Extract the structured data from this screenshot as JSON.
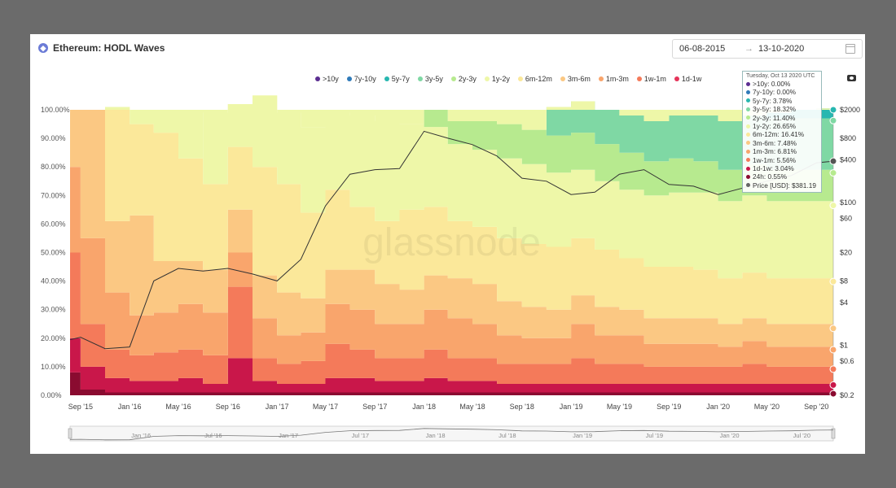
{
  "header": {
    "title": "Ethereum: HODL Waves",
    "coin_icon": "eth-icon",
    "date_from": "06-08-2015",
    "date_to": "13-10-2020",
    "arrow": "→",
    "calendar_icon": "calendar-icon",
    "screenshot_icon": "camera-icon"
  },
  "legend": [
    {
      "label": ">10y",
      "color": "#5b2e91"
    },
    {
      "label": "7y-10y",
      "color": "#2f7ab9"
    },
    {
      "label": "5y-7y",
      "color": "#27b7b0"
    },
    {
      "label": "3y-5y",
      "color": "#7fd8a4"
    },
    {
      "label": "2y-3y",
      "color": "#b7ea8f"
    },
    {
      "label": "1y-2y",
      "color": "#eef7a8"
    },
    {
      "label": "6m-12m",
      "color": "#fbe89a"
    },
    {
      "label": "3m-6m",
      "color": "#fbc883"
    },
    {
      "label": "1m-3m",
      "color": "#f9a56c"
    },
    {
      "label": "1w-1m",
      "color": "#f47a5a"
    },
    {
      "label": "1d-1w",
      "color": "#e5345a"
    }
  ],
  "tooltip": {
    "date": "Tuesday, Oct 13 2020 UTC",
    "rows": [
      {
        "label": ">10y: 0.00%",
        "color": "#5b2e91"
      },
      {
        "label": "7y-10y: 0.00%",
        "color": "#2f7ab9"
      },
      {
        "label": "5y-7y: 3.78%",
        "color": "#27b7b0"
      },
      {
        "label": "3y-5y: 18.32%",
        "color": "#7fd8a4"
      },
      {
        "label": "2y-3y: 11.40%",
        "color": "#b7ea8f"
      },
      {
        "label": "1y-2y: 26.65%",
        "color": "#eef7a8"
      },
      {
        "label": "6m-12m: 16.41%",
        "color": "#fbe89a"
      },
      {
        "label": "3m-6m: 7.48%",
        "color": "#fbc883"
      },
      {
        "label": "1m-3m: 6.81%",
        "color": "#f9a56c"
      },
      {
        "label": "1w-1m: 5.56%",
        "color": "#f47a5a"
      },
      {
        "label": "1d-1w: 3.04%",
        "color": "#c9174a"
      },
      {
        "label": "24h: 0.55%",
        "color": "#8a0b30"
      },
      {
        "label": "Price [USD]: $381.19",
        "color": "#666666"
      }
    ]
  },
  "watermark": "glassnode",
  "chart_data": {
    "type": "area",
    "title": "Ethereum: HODL Waves",
    "y_axis_left": {
      "ticks": [
        "0.00%",
        "10.00%",
        "20.00%",
        "30.00%",
        "40.00%",
        "50.00%",
        "60.00%",
        "70.00%",
        "80.00%",
        "90.00%",
        "100.00%"
      ],
      "range": [
        0,
        100
      ],
      "unit": "%"
    },
    "y_axis_right": {
      "scale": "log",
      "ticks": [
        "$0.2",
        "$0.6",
        "$1",
        "$4",
        "$8",
        "$20",
        "$60",
        "$100",
        "$400",
        "$800",
        "$2000"
      ],
      "range": [
        0.2,
        2000
      ]
    },
    "x_axis": {
      "ticks": [
        "Sep '15",
        "Jan '16",
        "May '16",
        "Sep '16",
        "Jan '17",
        "May '17",
        "Sep '17",
        "Jan '18",
        "May '18",
        "Sep '18",
        "Jan '19",
        "May '19",
        "Sep '19",
        "Jan '20",
        "May '20",
        "Sep '20"
      ]
    },
    "navigator_ticks": [
      "Jan '16",
      "Jul '16",
      "Jan '17",
      "Jul '17",
      "Jan '18",
      "Jul '18",
      "Jan '19",
      "Jul '19",
      "Jan '20",
      "Jul '20"
    ],
    "x_range": [
      "2015-08-06",
      "2020-10-13"
    ],
    "grid": false,
    "legend_position": "top-right",
    "dates": [
      "2015-08-06",
      "2015-09-01",
      "2015-11-01",
      "2016-01-01",
      "2016-03-01",
      "2016-05-01",
      "2016-07-01",
      "2016-09-01",
      "2016-11-01",
      "2017-01-01",
      "2017-03-01",
      "2017-05-01",
      "2017-07-01",
      "2017-09-01",
      "2017-11-01",
      "2018-01-01",
      "2018-03-01",
      "2018-05-01",
      "2018-07-01",
      "2018-09-01",
      "2018-11-01",
      "2019-01-01",
      "2019-03-01",
      "2019-05-01",
      "2019-07-01",
      "2019-09-01",
      "2019-11-01",
      "2020-01-01",
      "2020-03-01",
      "2020-05-01",
      "2020-07-01",
      "2020-09-01",
      "2020-10-13"
    ],
    "series": [
      {
        "name": "24h",
        "color": "#8a0b30",
        "values": [
          8,
          2,
          1,
          1,
          1,
          1,
          1,
          1,
          1,
          1,
          1,
          1,
          1,
          1,
          1,
          1,
          1,
          1,
          1,
          1,
          1,
          1,
          1,
          1,
          1,
          1,
          1,
          1,
          1,
          1,
          1,
          1,
          0.55
        ]
      },
      {
        "name": "1d-1w",
        "color": "#c9174a",
        "values": [
          12,
          8,
          5,
          4,
          4,
          5,
          3,
          12,
          4,
          3,
          3,
          5,
          5,
          4,
          4,
          5,
          4,
          4,
          3,
          3,
          3,
          3,
          3,
          3,
          3,
          3,
          3,
          3,
          3,
          3,
          3,
          3,
          3.04
        ]
      },
      {
        "name": "1w-1m",
        "color": "#f47a5a",
        "values": [
          30,
          15,
          10,
          9,
          10,
          10,
          10,
          25,
          8,
          7,
          8,
          12,
          10,
          8,
          8,
          10,
          8,
          8,
          7,
          7,
          7,
          9,
          7,
          7,
          6,
          6,
          6,
          6,
          7,
          6,
          6,
          6,
          5.56
        ]
      },
      {
        "name": "1m-3m",
        "color": "#f9a56c",
        "values": [
          30,
          30,
          20,
          14,
          14,
          16,
          15,
          12,
          14,
          10,
          10,
          14,
          14,
          12,
          12,
          14,
          14,
          12,
          10,
          9,
          9,
          12,
          10,
          10,
          8,
          8,
          8,
          7,
          8,
          7,
          7,
          7,
          6.81
        ]
      },
      {
        "name": "3m-6m",
        "color": "#fbc883",
        "values": [
          20,
          45,
          25,
          35,
          18,
          15,
          15,
          15,
          15,
          15,
          12,
          12,
          14,
          14,
          12,
          12,
          14,
          14,
          12,
          11,
          10,
          10,
          10,
          9,
          9,
          9,
          9,
          8,
          8,
          8,
          8,
          8,
          7.48
        ]
      },
      {
        "name": "6m-12m",
        "color": "#fbe89a",
        "values": [
          0,
          0,
          40,
          32,
          45,
          36,
          30,
          22,
          38,
          38,
          30,
          28,
          22,
          22,
          28,
          24,
          20,
          20,
          22,
          22,
          22,
          20,
          20,
          18,
          18,
          18,
          17,
          16,
          16,
          16,
          16,
          16,
          16.41
        ]
      },
      {
        "name": "1y-2y",
        "color": "#eef7a8",
        "values": [
          0,
          0,
          0,
          0,
          0,
          0,
          25,
          15,
          25,
          25,
          30,
          27,
          32,
          35,
          30,
          28,
          27,
          27,
          28,
          28,
          26,
          24,
          24,
          24,
          25,
          26,
          27,
          27,
          27,
          27,
          27,
          27,
          26.65
        ]
      },
      {
        "name": "2y-3y",
        "color": "#b7ea8f",
        "values": [
          0,
          0,
          0,
          0,
          0,
          0,
          0,
          0,
          0,
          0,
          0,
          0,
          0,
          0,
          0,
          6,
          8,
          10,
          12,
          12,
          13,
          13,
          13,
          13,
          12,
          12,
          11,
          11,
          11,
          11,
          11,
          11,
          11.4
        ]
      },
      {
        "name": "3y-5y",
        "color": "#7fd8a4",
        "values": [
          0,
          0,
          0,
          0,
          0,
          0,
          0,
          0,
          0,
          0,
          0,
          0,
          0,
          0,
          0,
          0,
          0,
          0,
          0,
          0,
          10,
          11,
          12,
          13,
          14,
          15,
          16,
          17,
          17,
          18,
          18,
          18,
          18.32
        ]
      },
      {
        "name": "5y-7y",
        "color": "#27b7b0",
        "values": [
          0,
          0,
          0,
          0,
          0,
          0,
          0,
          0,
          0,
          0,
          0,
          0,
          0,
          0,
          0,
          0,
          0,
          0,
          0,
          0,
          0,
          0,
          0,
          0,
          0,
          0,
          0,
          0,
          0,
          2,
          3,
          3.5,
          3.78
        ]
      },
      {
        "name": "Price [USD]",
        "color": "#333333",
        "axis": "right",
        "values": [
          1.2,
          1.3,
          0.9,
          0.95,
          8,
          12,
          11,
          12,
          10,
          8,
          16,
          90,
          250,
          290,
          300,
          1000,
          800,
          650,
          450,
          220,
          200,
          130,
          140,
          250,
          290,
          180,
          170,
          130,
          160,
          200,
          240,
          360,
          381.19
        ]
      }
    ]
  }
}
